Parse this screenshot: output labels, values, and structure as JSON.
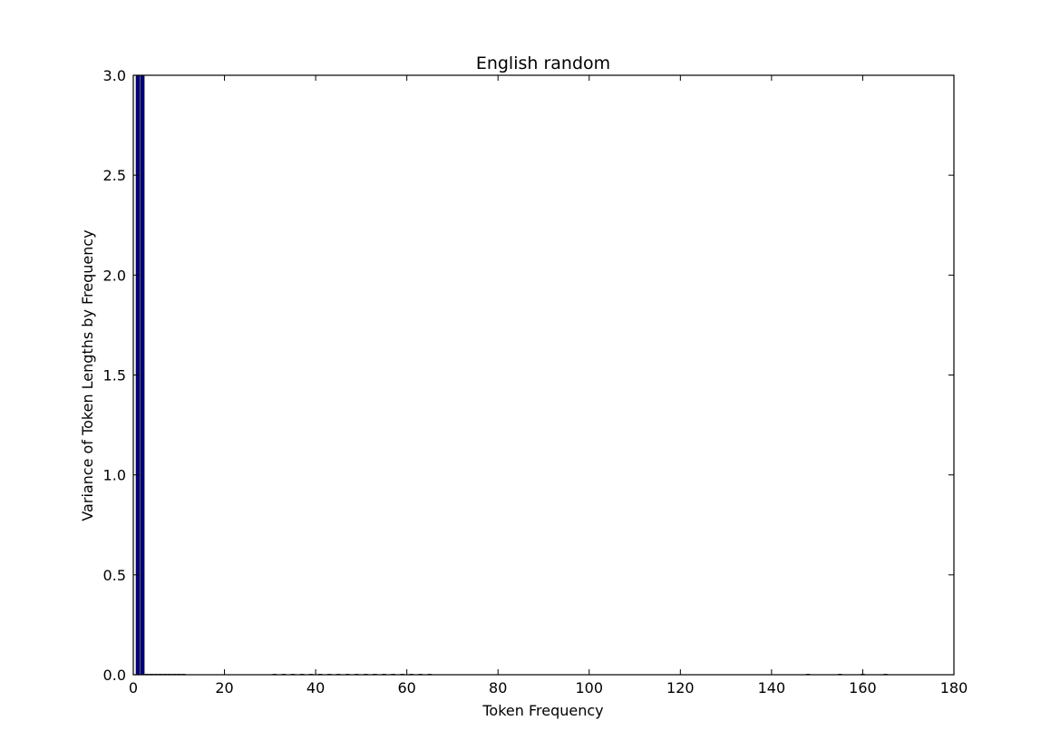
{
  "chart_data": {
    "type": "bar",
    "title": "English random",
    "xlabel": "Token Frequency",
    "ylabel": "Variance of Token Lengths by Frequency",
    "xlim": [
      0,
      180
    ],
    "ylim": [
      0,
      3.0
    ],
    "x_ticks": [
      "0",
      "20",
      "40",
      "60",
      "80",
      "100",
      "120",
      "140",
      "160",
      "180"
    ],
    "y_ticks": [
      "0.0",
      "0.5",
      "1.0",
      "1.5",
      "2.0",
      "2.5",
      "3.0"
    ],
    "bar_color": "#00008b",
    "grid": false,
    "legend": "none",
    "x": [
      1,
      2,
      3,
      4,
      5,
      6,
      7,
      8,
      9,
      10,
      11,
      31,
      33,
      35,
      37,
      39,
      41,
      43,
      45,
      47,
      49,
      51,
      53,
      55,
      57,
      59,
      61,
      63,
      65,
      148,
      155,
      160,
      165
    ],
    "values": [
      3.0,
      3.0,
      0,
      0,
      0,
      0,
      0,
      0,
      0,
      0,
      0,
      0,
      0,
      0,
      0,
      0,
      0,
      0,
      0,
      0,
      0,
      0,
      0,
      0,
      0,
      0,
      0,
      0,
      0,
      0,
      0,
      0,
      0
    ]
  }
}
